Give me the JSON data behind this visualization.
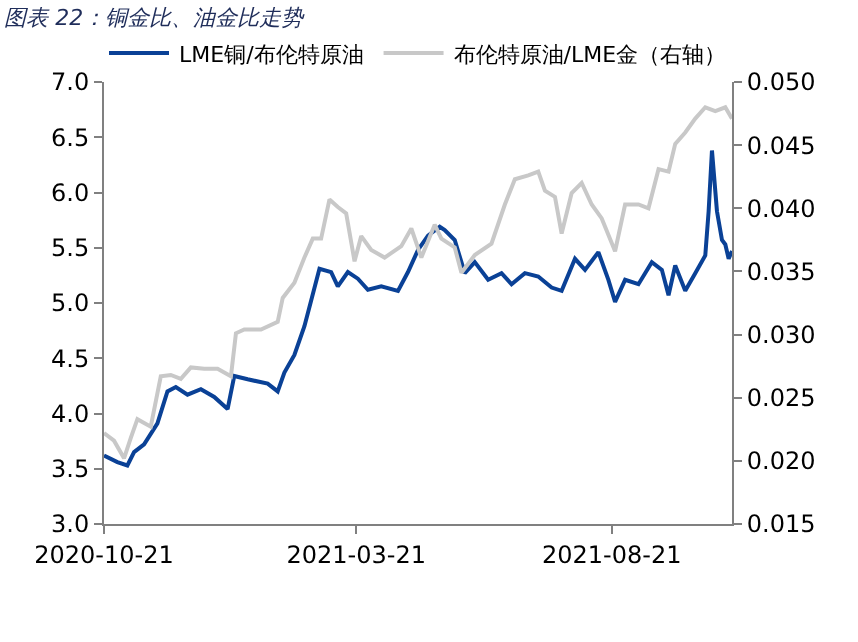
{
  "chart_data": {
    "type": "line",
    "title": "图表 22：铜金比、油金比走势",
    "xlim": [
      "2020-10-21",
      "2021-11-01"
    ],
    "xticks": [
      "2020-10-21",
      "2021-03-21",
      "2021-08-21"
    ],
    "ylim": [
      3.0,
      7.0
    ],
    "yticks": [
      {
        "value": 3,
        "label": "3.0"
      },
      3.5,
      {
        "value": 4,
        "label": "4.0"
      },
      4.5,
      {
        "value": 5,
        "label": "5.0"
      },
      5.5,
      {
        "value": 6,
        "label": "6.0"
      },
      6.5,
      {
        "value": 7,
        "label": "7.0"
      }
    ],
    "y2lim": [
      0.015,
      0.05
    ],
    "y2ticks": [
      0.015,
      {
        "value": 0.02,
        "label": "0.020"
      },
      0.025,
      {
        "value": 0.03,
        "label": "0.030"
      },
      0.035,
      {
        "value": 0.04,
        "label": "0.040"
      },
      0.045,
      {
        "value": 0.05,
        "label": "0.050"
      }
    ],
    "grid": false,
    "legend": "top",
    "marker": "none",
    "line_style": "solid",
    "series": [
      {
        "name": "LME铜/布伦特原油",
        "color": "#0a4196",
        "x": [
          "2020-10-21",
          "2020-10-29",
          "2020-11-04",
          "2020-11-08",
          "2020-11-14",
          "2020-11-22",
          "2020-11-28",
          "2020-12-03",
          "2020-12-10",
          "2020-12-18",
          "2020-12-26",
          "2021-01-03",
          "2021-01-07",
          "2021-01-15",
          "2021-01-27",
          "2021-02-02",
          "2021-02-06",
          "2021-02-12",
          "2021-02-18",
          "2021-02-22",
          "2021-02-27",
          "2021-03-06",
          "2021-03-10",
          "2021-03-16",
          "2021-03-22",
          "2021-03-28",
          "2021-04-05",
          "2021-04-15",
          "2021-04-21",
          "2021-04-27",
          "2021-05-03",
          "2021-05-10",
          "2021-05-13",
          "2021-05-19",
          "2021-05-25",
          "2021-05-31",
          "2021-06-08",
          "2021-06-16",
          "2021-06-22",
          "2021-06-30",
          "2021-07-08",
          "2021-07-16",
          "2021-07-22",
          "2021-07-30",
          "2021-08-05",
          "2021-08-13",
          "2021-08-19",
          "2021-08-23",
          "2021-08-29",
          "2021-09-06",
          "2021-09-14",
          "2021-09-20",
          "2021-09-24",
          "2021-09-28",
          "2021-10-04",
          "2021-10-10",
          "2021-10-16",
          "2021-10-18",
          "2021-10-20",
          "2021-10-23",
          "2021-10-26",
          "2021-10-28",
          "2021-10-30",
          "2021-11-01"
        ],
        "values": [
          3.62,
          3.56,
          3.53,
          3.65,
          3.72,
          3.91,
          4.2,
          4.24,
          4.17,
          4.22,
          4.15,
          4.04,
          4.34,
          4.31,
          4.27,
          4.2,
          4.37,
          4.53,
          4.79,
          5.02,
          5.31,
          5.28,
          5.15,
          5.28,
          5.22,
          5.12,
          5.15,
          5.11,
          5.28,
          5.48,
          5.61,
          5.69,
          5.66,
          5.57,
          5.27,
          5.37,
          5.21,
          5.27,
          5.17,
          5.27,
          5.24,
          5.14,
          5.11,
          5.4,
          5.3,
          5.46,
          5.21,
          5.01,
          5.21,
          5.17,
          5.37,
          5.3,
          5.07,
          5.34,
          5.11,
          5.27,
          5.43,
          5.83,
          6.38,
          5.83,
          5.57,
          5.53,
          5.4,
          5.47
        ]
      },
      {
        "name": "布伦特原油/LME金（右轴）",
        "color": "#c8c8c8",
        "axis": "y2",
        "x": [
          "2020-10-21",
          "2020-10-27",
          "2020-11-02",
          "2020-11-06",
          "2020-11-10",
          "2020-11-18",
          "2020-11-24",
          "2020-11-30",
          "2020-12-06",
          "2020-12-12",
          "2020-12-20",
          "2020-12-28",
          "2021-01-05",
          "2021-01-08",
          "2021-01-13",
          "2021-01-23",
          "2021-02-02",
          "2021-02-05",
          "2021-02-12",
          "2021-02-18",
          "2021-02-23",
          "2021-02-28",
          "2021-03-05",
          "2021-03-10",
          "2021-03-15",
          "2021-03-20",
          "2021-03-24",
          "2021-03-30",
          "2021-04-07",
          "2021-04-17",
          "2021-04-23",
          "2021-04-29",
          "2021-05-07",
          "2021-05-11",
          "2021-05-19",
          "2021-05-23",
          "2021-05-31",
          "2021-06-10",
          "2021-06-18",
          "2021-06-24",
          "2021-07-02",
          "2021-07-08",
          "2021-07-12",
          "2021-07-18",
          "2021-07-22",
          "2021-07-28",
          "2021-08-03",
          "2021-08-09",
          "2021-08-15",
          "2021-08-23",
          "2021-08-29",
          "2021-09-06",
          "2021-09-12",
          "2021-09-18",
          "2021-09-24",
          "2021-09-28",
          "2021-10-04",
          "2021-10-10",
          "2021-10-16",
          "2021-10-22",
          "2021-10-28",
          "2021-11-01"
        ],
        "values": [
          0.0222,
          0.0216,
          0.0202,
          0.0218,
          0.0233,
          0.0227,
          0.0267,
          0.0268,
          0.0265,
          0.0274,
          0.0273,
          0.0273,
          0.0267,
          0.0301,
          0.0304,
          0.0304,
          0.031,
          0.0329,
          0.0341,
          0.0361,
          0.0376,
          0.0376,
          0.0407,
          0.0401,
          0.0396,
          0.0358,
          0.0378,
          0.0367,
          0.0361,
          0.037,
          0.0384,
          0.0361,
          0.0387,
          0.0376,
          0.0369,
          0.0349,
          0.0363,
          0.0372,
          0.0403,
          0.0423,
          0.0426,
          0.0429,
          0.0414,
          0.0409,
          0.038,
          0.0412,
          0.042,
          0.0403,
          0.0392,
          0.0366,
          0.0403,
          0.0403,
          0.04,
          0.0431,
          0.0429,
          0.0451,
          0.046,
          0.0471,
          0.048,
          0.0477,
          0.048,
          0.0471
        ]
      }
    ]
  }
}
